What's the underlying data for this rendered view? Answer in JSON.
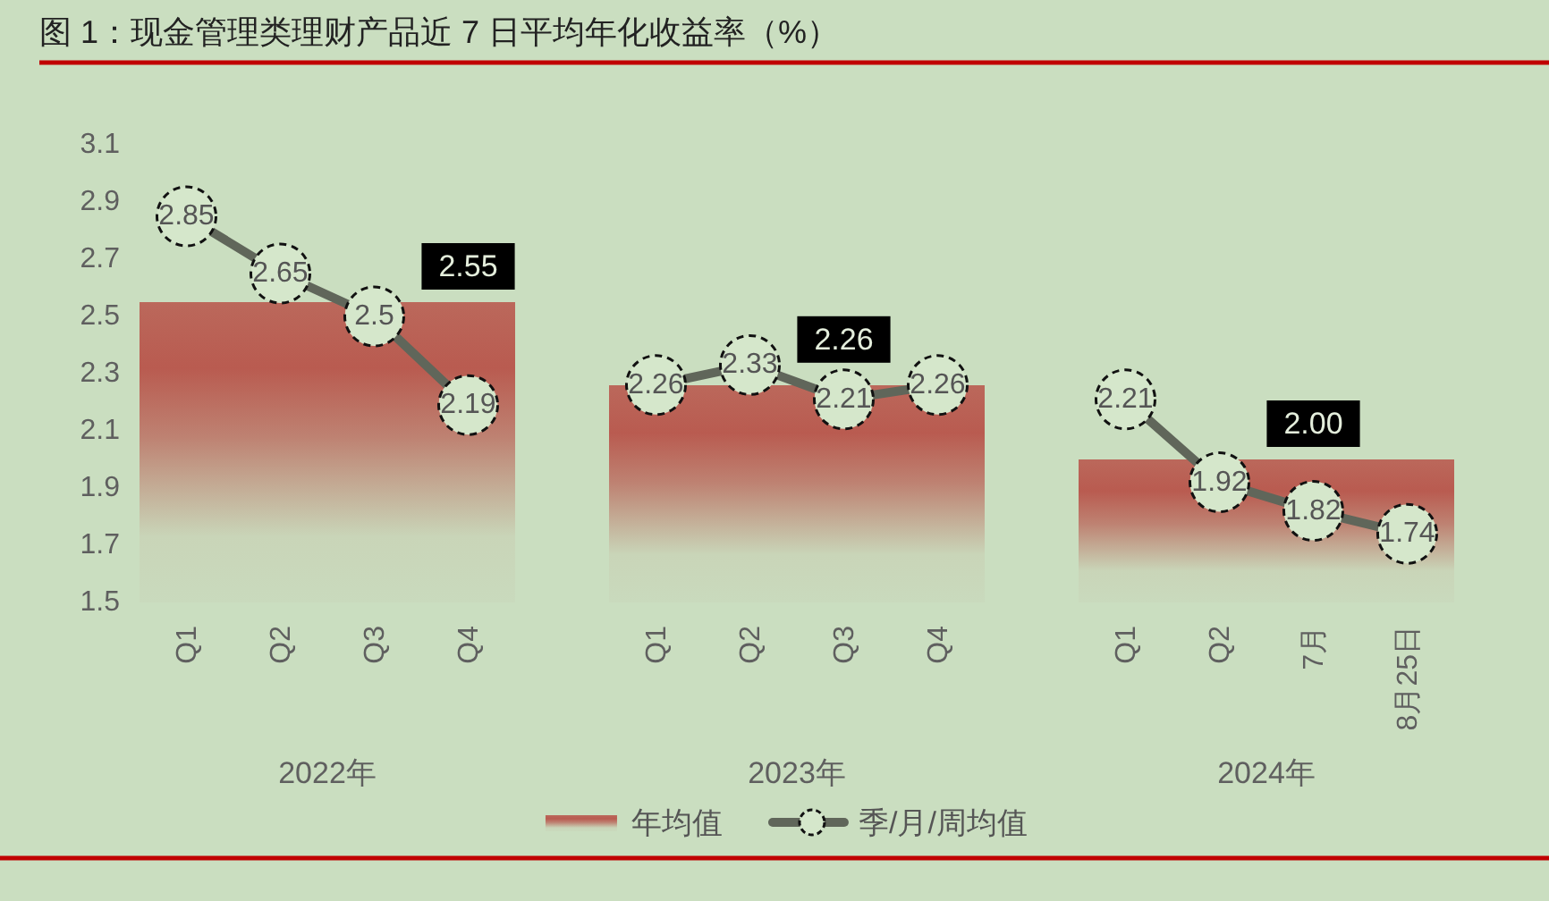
{
  "chart_data": {
    "type": "bar",
    "title": "图 1：现金管理类理财产品近 7 日平均年化收益率（%）",
    "categories": [
      "Q1",
      "Q2",
      "Q3",
      "Q4",
      null,
      "Q1",
      "Q2",
      "Q3",
      "Q4",
      null,
      "Q1",
      "Q2",
      "7月",
      "8月25日"
    ],
    "series": [
      {
        "name": "年均值",
        "color": "#b95b50",
        "values": [
          2.55,
          2.55,
          2.55,
          2.55,
          null,
          2.26,
          2.26,
          2.26,
          2.26,
          null,
          2.0,
          2.0,
          2.0,
          2.0
        ],
        "value_labels": [
          null,
          null,
          null,
          "2.55",
          null,
          null,
          null,
          "2.26",
          null,
          null,
          null,
          null,
          "2.00",
          null
        ]
      },
      {
        "name": "季/月/周均值",
        "type": "line",
        "color": "#60665a",
        "values": [
          2.85,
          2.65,
          2.5,
          2.19,
          null,
          2.26,
          2.33,
          2.21,
          2.26,
          null,
          2.21,
          1.92,
          1.82,
          1.74
        ],
        "value_labels": [
          "2.85",
          "2.65",
          "2.5",
          "2.19",
          null,
          "2.26",
          "2.33",
          "2.21",
          "2.26",
          null,
          "2.21",
          "1.92",
          "1.82",
          "1.74"
        ]
      }
    ],
    "ylim": [
      1.5,
      3.1
    ],
    "yticks": [
      1.5,
      1.7,
      1.9,
      2.1,
      2.3,
      2.5,
      2.7,
      2.9,
      3.1
    ],
    "legend": "bottom",
    "marker": "circle",
    "line_style": "solid",
    "annotations": [
      "2022年",
      "2023年",
      "2024年"
    ]
  }
}
